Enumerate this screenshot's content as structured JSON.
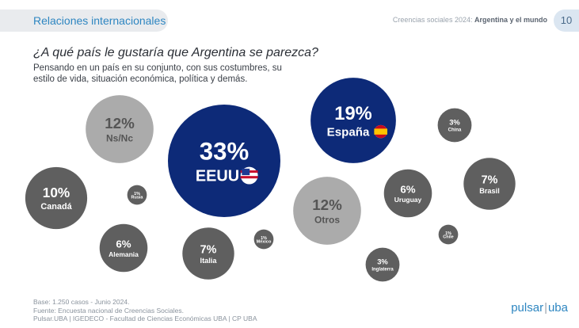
{
  "header": {
    "section": "Relaciones internacionales",
    "survey": "Creencias sociales 2024:",
    "survey_topic": "Argentina y el mundo",
    "page_number": "10"
  },
  "title": "¿A qué país le gustaría que Argentina se parezca?",
  "subtitle": "Pensando en un país en su conjunto, con sus costumbres, su estilo de vida, situación económica, política y demás.",
  "footer": {
    "base": "Base: 1.250 casos - Junio 2024.",
    "source": "Fuente: Encuesta nacional de Creencias Sociales.",
    "credits": "Pulsar.UBA | IGEDECO - Facultad de Ciencias Económicas UBA | CP UBA"
  },
  "brand": {
    "left": "pulsar",
    "right": "uba"
  },
  "colors": {
    "highlight": "#0d2a78",
    "light": "#ababab",
    "dark": "#5f5f5f",
    "accent": "#2e86c1"
  },
  "chart_data": {
    "type": "bubble",
    "unit": "%",
    "items": [
      {
        "label": "EEUU",
        "value": 33,
        "display": "33%",
        "style": "highlight",
        "flag": "us-flag-icon"
      },
      {
        "label": "España",
        "value": 19,
        "display": "19%",
        "style": "highlight",
        "flag": "spain-flag-icon"
      },
      {
        "label": "Ns/Nc",
        "value": 12,
        "display": "12%",
        "style": "light"
      },
      {
        "label": "Otros",
        "value": 12,
        "display": "12%",
        "style": "light"
      },
      {
        "label": "Canadá",
        "value": 10,
        "display": "10%",
        "style": "dark"
      },
      {
        "label": "Brasil",
        "value": 7,
        "display": "7%",
        "style": "dark"
      },
      {
        "label": "Italia",
        "value": 7,
        "display": "7%",
        "style": "dark"
      },
      {
        "label": "Uruguay",
        "value": 6,
        "display": "6%",
        "style": "dark"
      },
      {
        "label": "Alemania",
        "value": 6,
        "display": "6%",
        "style": "dark"
      },
      {
        "label": "China",
        "value": 3,
        "display": "3%",
        "style": "dark"
      },
      {
        "label": "Inglaterra",
        "value": 3,
        "display": "3%",
        "style": "dark"
      },
      {
        "label": "Rusia",
        "value": 1,
        "display": "1%",
        "style": "dark"
      },
      {
        "label": "México",
        "value": 1,
        "display": "1%",
        "style": "dark"
      },
      {
        "label": "Chile",
        "value": 1,
        "display": "1%",
        "style": "dark"
      }
    ]
  }
}
